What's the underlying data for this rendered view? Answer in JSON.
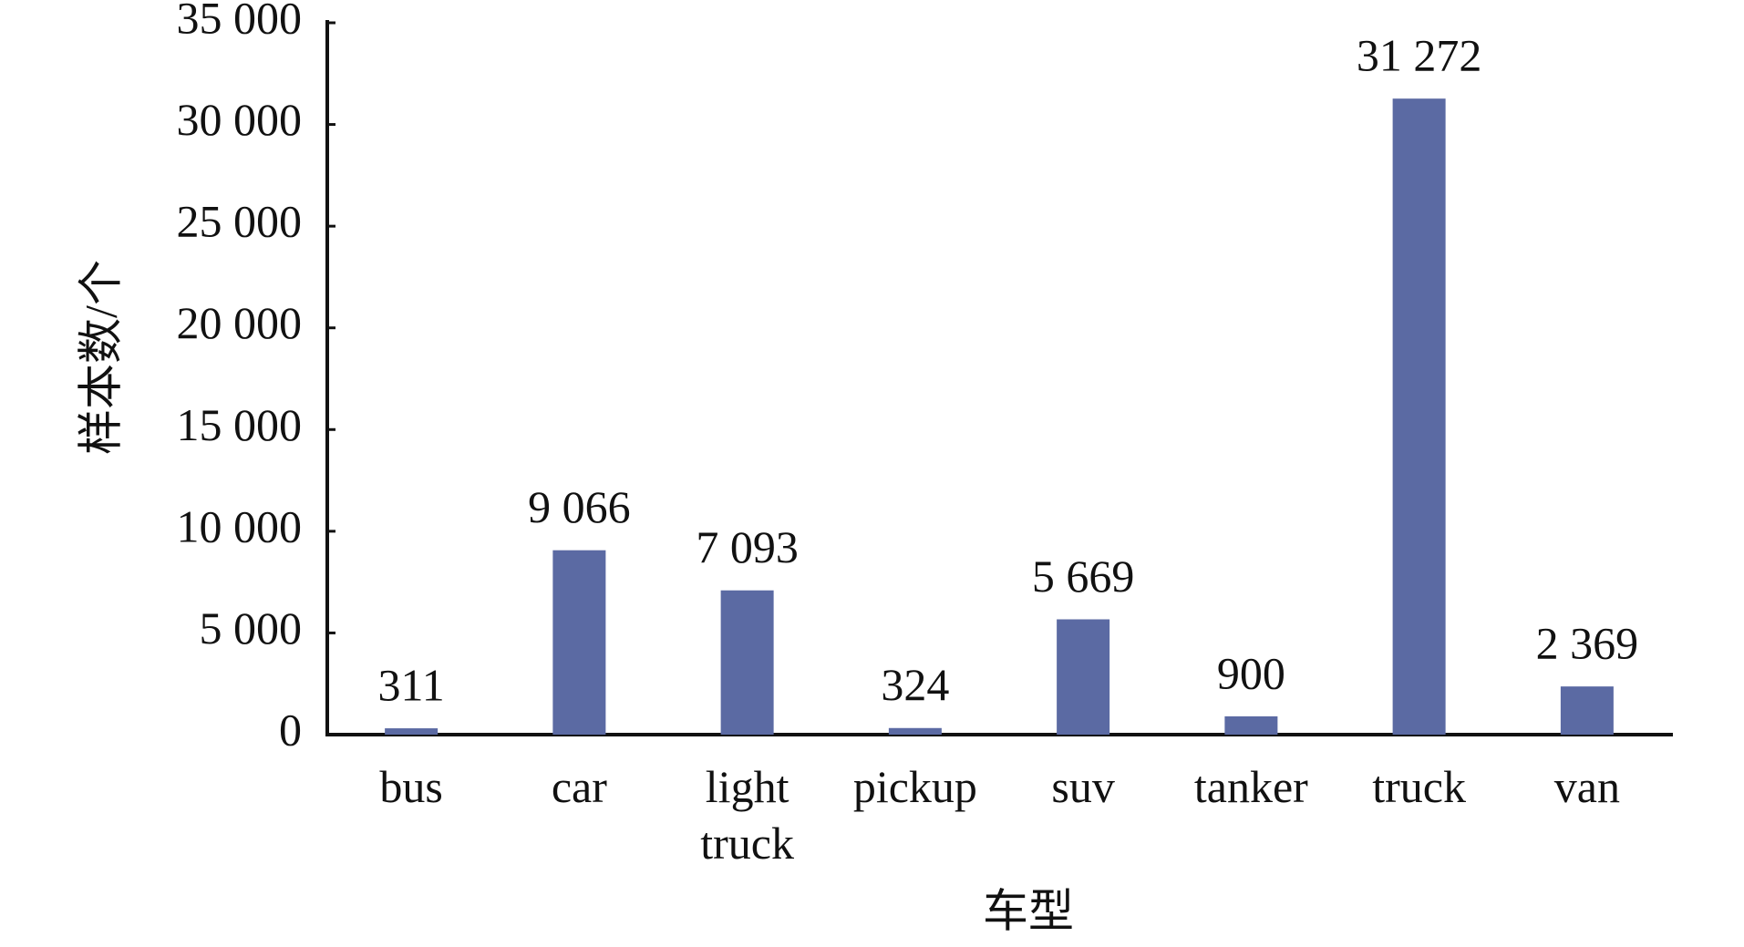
{
  "chart_data": {
    "type": "bar",
    "x_label": "车型",
    "y_label": "样本数/个",
    "categories": [
      "bus",
      "car",
      "light truck",
      "pickup",
      "suv",
      "tanker",
      "truck",
      "van"
    ],
    "values": [
      311,
      9066,
      7093,
      324,
      5669,
      900,
      31272,
      2369
    ],
    "value_labels": [
      "311",
      "9 066",
      "7 093",
      "324",
      "5 669",
      "900",
      "31 272",
      "2 369"
    ],
    "color": "#5b6aa3",
    "ylim": [
      0,
      35000
    ],
    "yticks": [
      0,
      {
        "value": 5000,
        "label": "5 000"
      },
      {
        "value": 10000,
        "label": "10 000"
      },
      {
        "value": 15000,
        "label": "15 000"
      },
      {
        "value": 20000,
        "label": "20 000"
      },
      {
        "value": 25000,
        "label": "25 000"
      },
      {
        "value": 30000,
        "label": "30 000"
      },
      {
        "value": 35000,
        "label": "35 000"
      }
    ],
    "grid": false
  }
}
